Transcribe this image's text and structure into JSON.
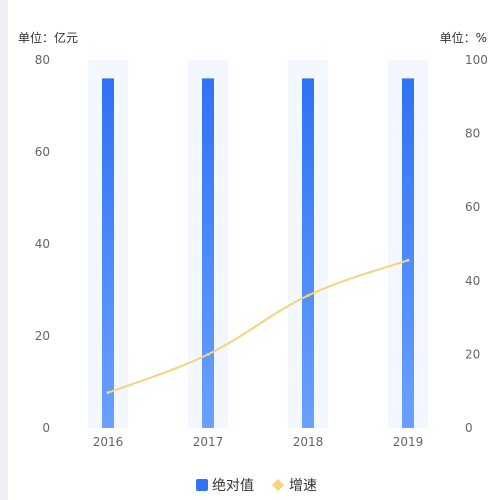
{
  "chart_data": {
    "type": "bar",
    "categories": [
      "2016",
      "2017",
      "2018",
      "2019"
    ],
    "series": [
      {
        "name": "绝对值",
        "type": "bar",
        "axis": "left",
        "values": [
          76,
          76,
          76,
          76
        ]
      },
      {
        "name": "增速",
        "type": "line",
        "axis": "right",
        "values": [
          9.6,
          20,
          36,
          45.6
        ]
      }
    ],
    "left_axis": {
      "unit": "单位：亿元",
      "ylim": [
        0,
        80
      ],
      "ticks": [
        "0",
        "20",
        "40",
        "60",
        "80"
      ]
    },
    "right_axis": {
      "unit": "单位：%",
      "ylim": [
        0,
        100
      ],
      "ticks": [
        "0",
        "20",
        "40",
        "60",
        "80",
        "100"
      ]
    },
    "legend_placement": "bottom",
    "grid": false
  },
  "colors": {
    "bar_top": "#2f72f5",
    "bar_bottom": "#6aa0ff",
    "bar_track": "#f3f7ff",
    "line": "#f7d37a",
    "axis_text": "#666666"
  }
}
